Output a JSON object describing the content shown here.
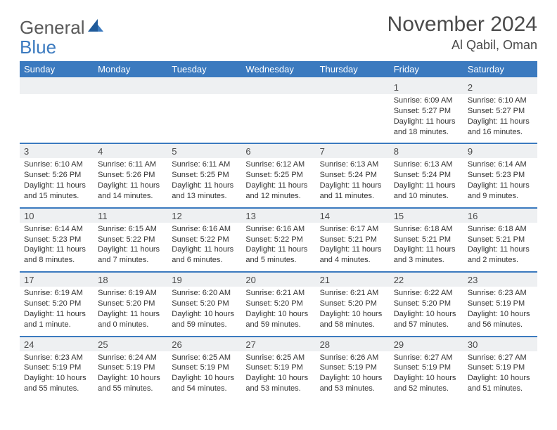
{
  "logo": {
    "text1": "General",
    "text2": "Blue"
  },
  "title": {
    "month": "November 2024",
    "location": "Al Qabil, Oman"
  },
  "colors": {
    "header_bg": "#3b7abf",
    "header_text": "#ffffff",
    "num_bg": "#eef0f2",
    "text": "#4a4a4a"
  },
  "day_names": [
    "Sunday",
    "Monday",
    "Tuesday",
    "Wednesday",
    "Thursday",
    "Friday",
    "Saturday"
  ],
  "weeks": [
    [
      null,
      null,
      null,
      null,
      null,
      {
        "n": "1",
        "sr": "Sunrise: 6:09 AM",
        "ss": "Sunset: 5:27 PM",
        "dl1": "Daylight: 11 hours",
        "dl2": "and 18 minutes."
      },
      {
        "n": "2",
        "sr": "Sunrise: 6:10 AM",
        "ss": "Sunset: 5:27 PM",
        "dl1": "Daylight: 11 hours",
        "dl2": "and 16 minutes."
      }
    ],
    [
      {
        "n": "3",
        "sr": "Sunrise: 6:10 AM",
        "ss": "Sunset: 5:26 PM",
        "dl1": "Daylight: 11 hours",
        "dl2": "and 15 minutes."
      },
      {
        "n": "4",
        "sr": "Sunrise: 6:11 AM",
        "ss": "Sunset: 5:26 PM",
        "dl1": "Daylight: 11 hours",
        "dl2": "and 14 minutes."
      },
      {
        "n": "5",
        "sr": "Sunrise: 6:11 AM",
        "ss": "Sunset: 5:25 PM",
        "dl1": "Daylight: 11 hours",
        "dl2": "and 13 minutes."
      },
      {
        "n": "6",
        "sr": "Sunrise: 6:12 AM",
        "ss": "Sunset: 5:25 PM",
        "dl1": "Daylight: 11 hours",
        "dl2": "and 12 minutes."
      },
      {
        "n": "7",
        "sr": "Sunrise: 6:13 AM",
        "ss": "Sunset: 5:24 PM",
        "dl1": "Daylight: 11 hours",
        "dl2": "and 11 minutes."
      },
      {
        "n": "8",
        "sr": "Sunrise: 6:13 AM",
        "ss": "Sunset: 5:24 PM",
        "dl1": "Daylight: 11 hours",
        "dl2": "and 10 minutes."
      },
      {
        "n": "9",
        "sr": "Sunrise: 6:14 AM",
        "ss": "Sunset: 5:23 PM",
        "dl1": "Daylight: 11 hours",
        "dl2": "and 9 minutes."
      }
    ],
    [
      {
        "n": "10",
        "sr": "Sunrise: 6:14 AM",
        "ss": "Sunset: 5:23 PM",
        "dl1": "Daylight: 11 hours",
        "dl2": "and 8 minutes."
      },
      {
        "n": "11",
        "sr": "Sunrise: 6:15 AM",
        "ss": "Sunset: 5:22 PM",
        "dl1": "Daylight: 11 hours",
        "dl2": "and 7 minutes."
      },
      {
        "n": "12",
        "sr": "Sunrise: 6:16 AM",
        "ss": "Sunset: 5:22 PM",
        "dl1": "Daylight: 11 hours",
        "dl2": "and 6 minutes."
      },
      {
        "n": "13",
        "sr": "Sunrise: 6:16 AM",
        "ss": "Sunset: 5:22 PM",
        "dl1": "Daylight: 11 hours",
        "dl2": "and 5 minutes."
      },
      {
        "n": "14",
        "sr": "Sunrise: 6:17 AM",
        "ss": "Sunset: 5:21 PM",
        "dl1": "Daylight: 11 hours",
        "dl2": "and 4 minutes."
      },
      {
        "n": "15",
        "sr": "Sunrise: 6:18 AM",
        "ss": "Sunset: 5:21 PM",
        "dl1": "Daylight: 11 hours",
        "dl2": "and 3 minutes."
      },
      {
        "n": "16",
        "sr": "Sunrise: 6:18 AM",
        "ss": "Sunset: 5:21 PM",
        "dl1": "Daylight: 11 hours",
        "dl2": "and 2 minutes."
      }
    ],
    [
      {
        "n": "17",
        "sr": "Sunrise: 6:19 AM",
        "ss": "Sunset: 5:20 PM",
        "dl1": "Daylight: 11 hours",
        "dl2": "and 1 minute."
      },
      {
        "n": "18",
        "sr": "Sunrise: 6:19 AM",
        "ss": "Sunset: 5:20 PM",
        "dl1": "Daylight: 11 hours",
        "dl2": "and 0 minutes."
      },
      {
        "n": "19",
        "sr": "Sunrise: 6:20 AM",
        "ss": "Sunset: 5:20 PM",
        "dl1": "Daylight: 10 hours",
        "dl2": "and 59 minutes."
      },
      {
        "n": "20",
        "sr": "Sunrise: 6:21 AM",
        "ss": "Sunset: 5:20 PM",
        "dl1": "Daylight: 10 hours",
        "dl2": "and 59 minutes."
      },
      {
        "n": "21",
        "sr": "Sunrise: 6:21 AM",
        "ss": "Sunset: 5:20 PM",
        "dl1": "Daylight: 10 hours",
        "dl2": "and 58 minutes."
      },
      {
        "n": "22",
        "sr": "Sunrise: 6:22 AM",
        "ss": "Sunset: 5:20 PM",
        "dl1": "Daylight: 10 hours",
        "dl2": "and 57 minutes."
      },
      {
        "n": "23",
        "sr": "Sunrise: 6:23 AM",
        "ss": "Sunset: 5:19 PM",
        "dl1": "Daylight: 10 hours",
        "dl2": "and 56 minutes."
      }
    ],
    [
      {
        "n": "24",
        "sr": "Sunrise: 6:23 AM",
        "ss": "Sunset: 5:19 PM",
        "dl1": "Daylight: 10 hours",
        "dl2": "and 55 minutes."
      },
      {
        "n": "25",
        "sr": "Sunrise: 6:24 AM",
        "ss": "Sunset: 5:19 PM",
        "dl1": "Daylight: 10 hours",
        "dl2": "and 55 minutes."
      },
      {
        "n": "26",
        "sr": "Sunrise: 6:25 AM",
        "ss": "Sunset: 5:19 PM",
        "dl1": "Daylight: 10 hours",
        "dl2": "and 54 minutes."
      },
      {
        "n": "27",
        "sr": "Sunrise: 6:25 AM",
        "ss": "Sunset: 5:19 PM",
        "dl1": "Daylight: 10 hours",
        "dl2": "and 53 minutes."
      },
      {
        "n": "28",
        "sr": "Sunrise: 6:26 AM",
        "ss": "Sunset: 5:19 PM",
        "dl1": "Daylight: 10 hours",
        "dl2": "and 53 minutes."
      },
      {
        "n": "29",
        "sr": "Sunrise: 6:27 AM",
        "ss": "Sunset: 5:19 PM",
        "dl1": "Daylight: 10 hours",
        "dl2": "and 52 minutes."
      },
      {
        "n": "30",
        "sr": "Sunrise: 6:27 AM",
        "ss": "Sunset: 5:19 PM",
        "dl1": "Daylight: 10 hours",
        "dl2": "and 51 minutes."
      }
    ]
  ]
}
